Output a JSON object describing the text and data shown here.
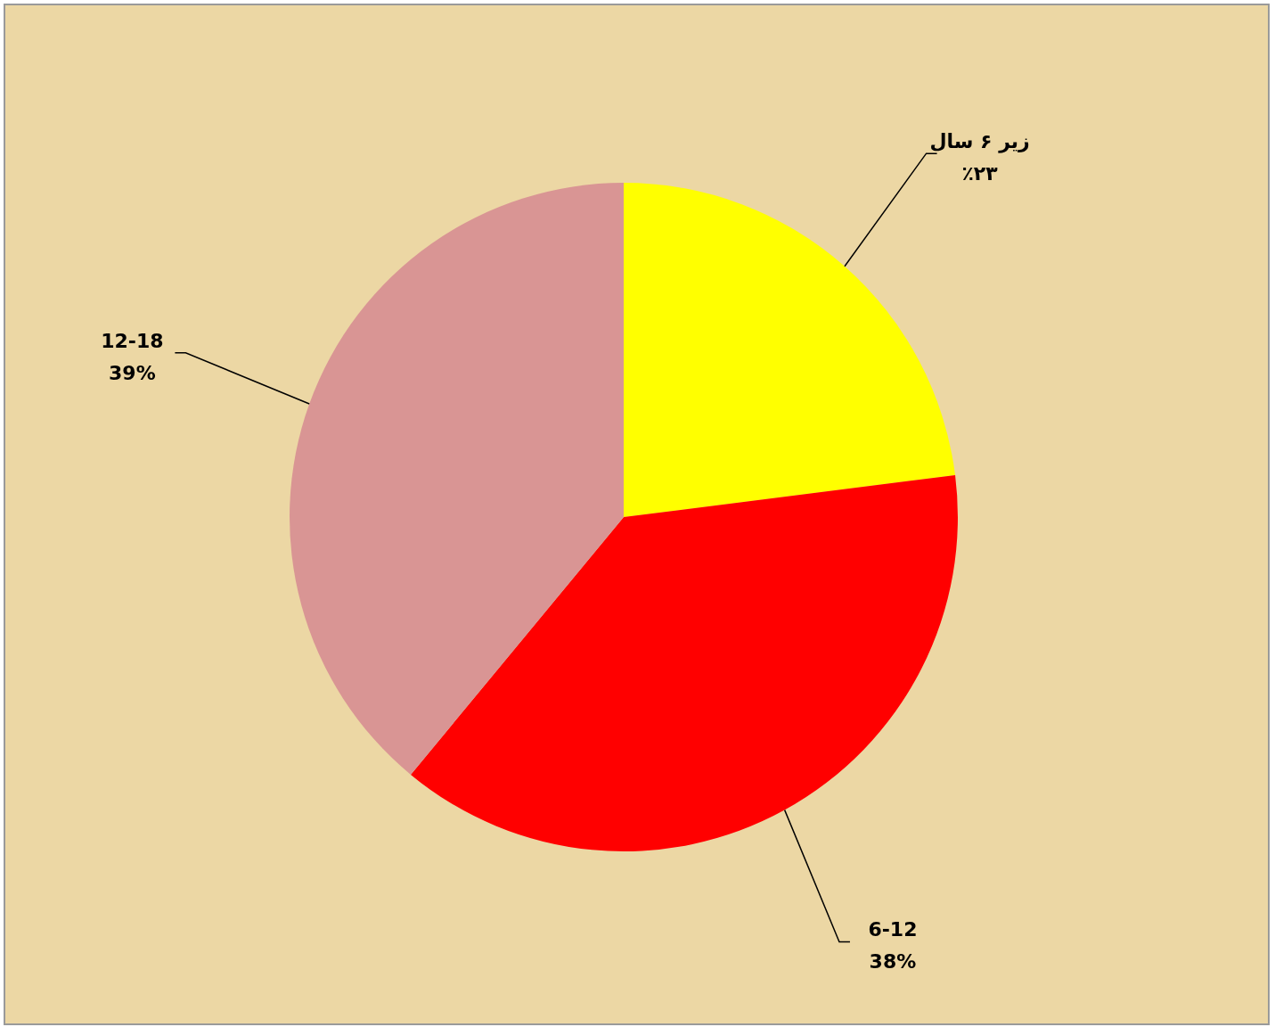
{
  "chart_data": {
    "type": "pie",
    "categories": [
      "زیر ۶ سال",
      "6-12",
      "12-18"
    ],
    "values": [
      23,
      38,
      39
    ],
    "colors": [
      "#ffff00",
      "#ff0000",
      "#d99594"
    ],
    "value_labels": [
      "٪۲۳",
      "38%",
      "39%"
    ]
  }
}
